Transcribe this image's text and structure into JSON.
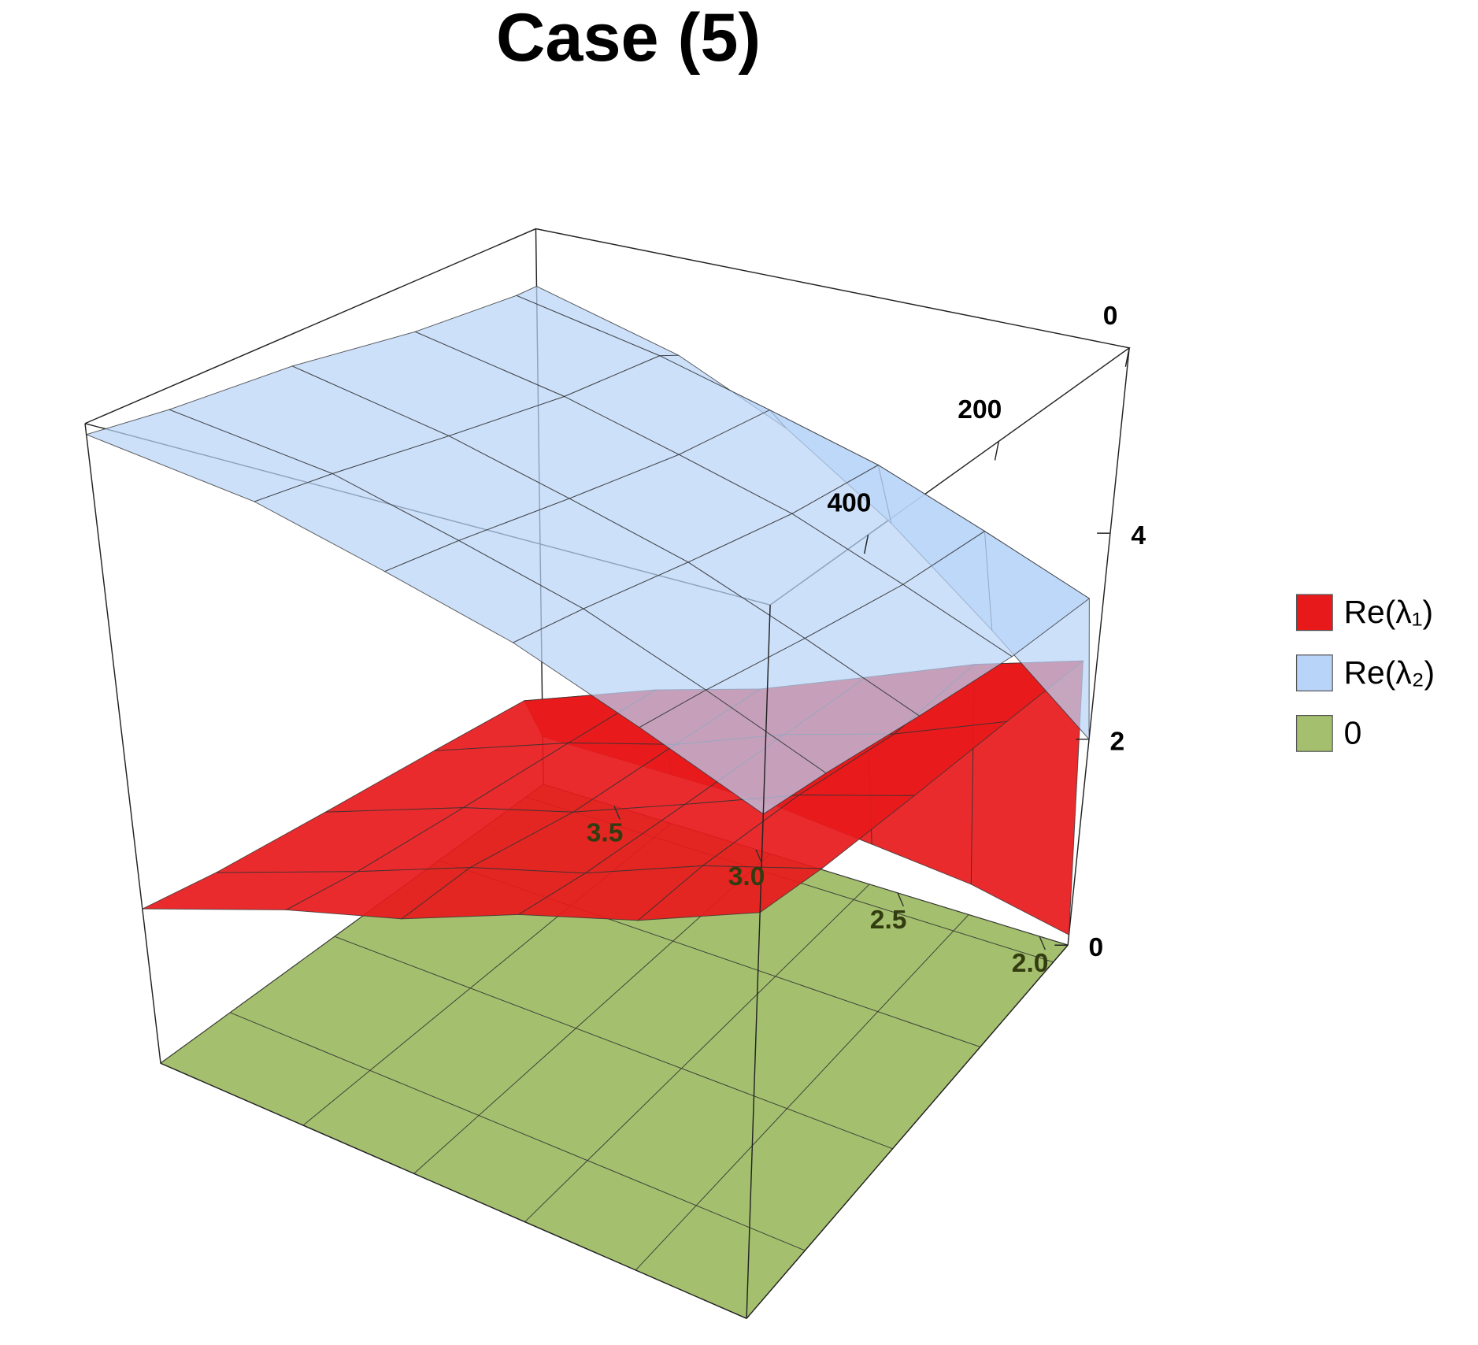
{
  "chart_data": {
    "type": "surface3d",
    "title": "Case (5)",
    "x": [
      0,
      25,
      150,
      300,
      450,
      550
    ],
    "y": [
      1.9,
      2.25,
      2.6,
      2.95,
      3.3,
      3.75
    ],
    "xlim": [
      0,
      550
    ],
    "ylim": [
      1.9,
      3.75
    ],
    "zlim": [
      0,
      5.8
    ],
    "xticks": [
      0,
      200,
      400
    ],
    "yticks": [
      {
        "value": 2,
        "label": "2.0"
      },
      2.5,
      {
        "value": 3,
        "label": "3.0"
      },
      3.5
    ],
    "zticks": [
      0,
      2,
      4
    ],
    "legend": "right",
    "series": [
      {
        "name": "0",
        "color": "#a4c06e",
        "values": [
          [
            0,
            0,
            0,
            0,
            0,
            0
          ],
          [
            0,
            0,
            0,
            0,
            0,
            0
          ],
          [
            0,
            0,
            0,
            0,
            0,
            0
          ],
          [
            0,
            0,
            0,
            0,
            0,
            0
          ],
          [
            0,
            0,
            0,
            0,
            0,
            0
          ],
          [
            0,
            0,
            0,
            0,
            0,
            0
          ]
        ]
      },
      {
        "name": "Re(λ₁)",
        "color": "#e8191b",
        "values": [
          [
            0.1,
            0.3,
            0.4,
            0.5,
            0.5,
            0.5
          ],
          [
            2.9,
            2.6,
            2.2,
            1.8,
            1.5,
            1.0
          ],
          [
            3.0,
            2.6,
            2.3,
            1.9,
            1.6,
            1.1
          ],
          [
            3.1,
            2.8,
            2.4,
            2.0,
            1.7,
            1.2
          ],
          [
            3.2,
            2.9,
            2.5,
            2.2,
            1.8,
            1.3
          ],
          [
            3.3,
            2.9,
            2.6,
            2.2,
            1.9,
            1.4
          ]
        ]
      },
      {
        "name": "Re(λ₂)",
        "color": "#b8d4f8",
        "values": [
          [
            2.0,
            2.8,
            3.6,
            4.3,
            4.8,
            5.2
          ],
          [
            3.5,
            3.9,
            4.3,
            4.6,
            4.9,
            5.2
          ],
          [
            3.6,
            4.0,
            4.4,
            4.7,
            5.0,
            5.3
          ],
          [
            3.8,
            4.2,
            4.6,
            4.9,
            5.2,
            5.5
          ],
          [
            4.0,
            4.4,
            4.8,
            5.1,
            5.4,
            5.6
          ],
          [
            4.1,
            4.5,
            4.9,
            5.2,
            5.5,
            5.7
          ]
        ]
      }
    ]
  }
}
